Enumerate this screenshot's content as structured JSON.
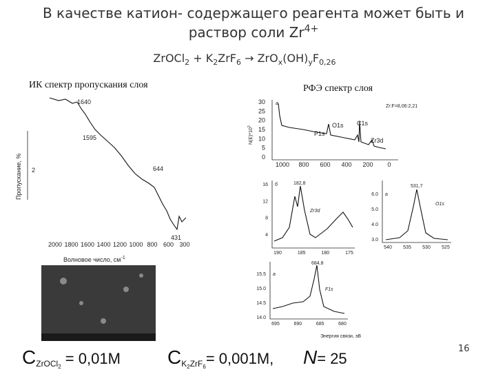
{
  "title": {
    "line1": "В качестве катион- содержащего реагента может быть и",
    "line2": "раствор соли Zr",
    "superscript": "4+"
  },
  "equation": [
    "ZrOCl",
    "2",
    " + K",
    "2",
    "ZrF",
    "6",
    " → ",
    "ZrO",
    "x",
    "(OH)",
    "y",
    "F",
    "0,26"
  ],
  "ir_spectrum": {
    "caption": "ИК спектр пропускания слоя",
    "y_label": "Пропускание, %",
    "y_tick": "2",
    "peaks": [
      "1640",
      "1595",
      "644",
      "431"
    ],
    "x_ticks": [
      "2000",
      "1800",
      "1600",
      "1400",
      "1200",
      "1000",
      "800",
      "600",
      "300"
    ],
    "x_label": "Волновое число, см",
    "x_label_sup": "-1"
  },
  "xps": {
    "caption": "РФЭ спектр слоя",
    "survey": {
      "panel": "a",
      "ratio": "Zr:F=8,06:2,21",
      "y_label": "N(E)*10",
      "y_label_sup": "3",
      "y_ticks": [
        "30",
        "25",
        "20",
        "15",
        "10",
        "5",
        "0"
      ],
      "x_ticks": [
        "1000",
        "800",
        "600",
        "400",
        "200",
        "0"
      ],
      "peaks": [
        "O1s",
        "C1s",
        "P1s",
        "Zr3d"
      ]
    },
    "zr3d": {
      "panel": "б",
      "peak": "182,8",
      "label": "Zr3d",
      "y_ticks": [
        "16",
        "12",
        "8",
        "4"
      ],
      "x_ticks": [
        "190",
        "185",
        "180",
        "175"
      ]
    },
    "o1s": {
      "panel": "a",
      "peak": "531,7",
      "label": "O1s",
      "y_ticks": [
        "6.0",
        "5.0",
        "4.0",
        "3.0"
      ],
      "x_ticks": [
        "540",
        "535",
        "530",
        "525"
      ]
    },
    "f1s": {
      "panel": "a",
      "peak": "684,8",
      "label": "F1s",
      "y_ticks": [
        "15.5",
        "15.0",
        "14.5",
        "14.0"
      ],
      "x_ticks": [
        "695",
        "690",
        "685",
        "680"
      ]
    },
    "x_label": "Энергия связи, эВ"
  },
  "formulas": {
    "c1": {
      "symbol": "C",
      "sub": "ZrOCl",
      "subsub": "2",
      "rest": " = 0,01M"
    },
    "c2": {
      "symbol": "C",
      "sub": "K",
      "subsub": "2",
      "sub2": "ZrF",
      "subsub2": "6",
      "rest": "= 0,001M,"
    },
    "n": {
      "symbol": "N",
      "rest": "= 25"
    }
  },
  "page_number": "16"
}
